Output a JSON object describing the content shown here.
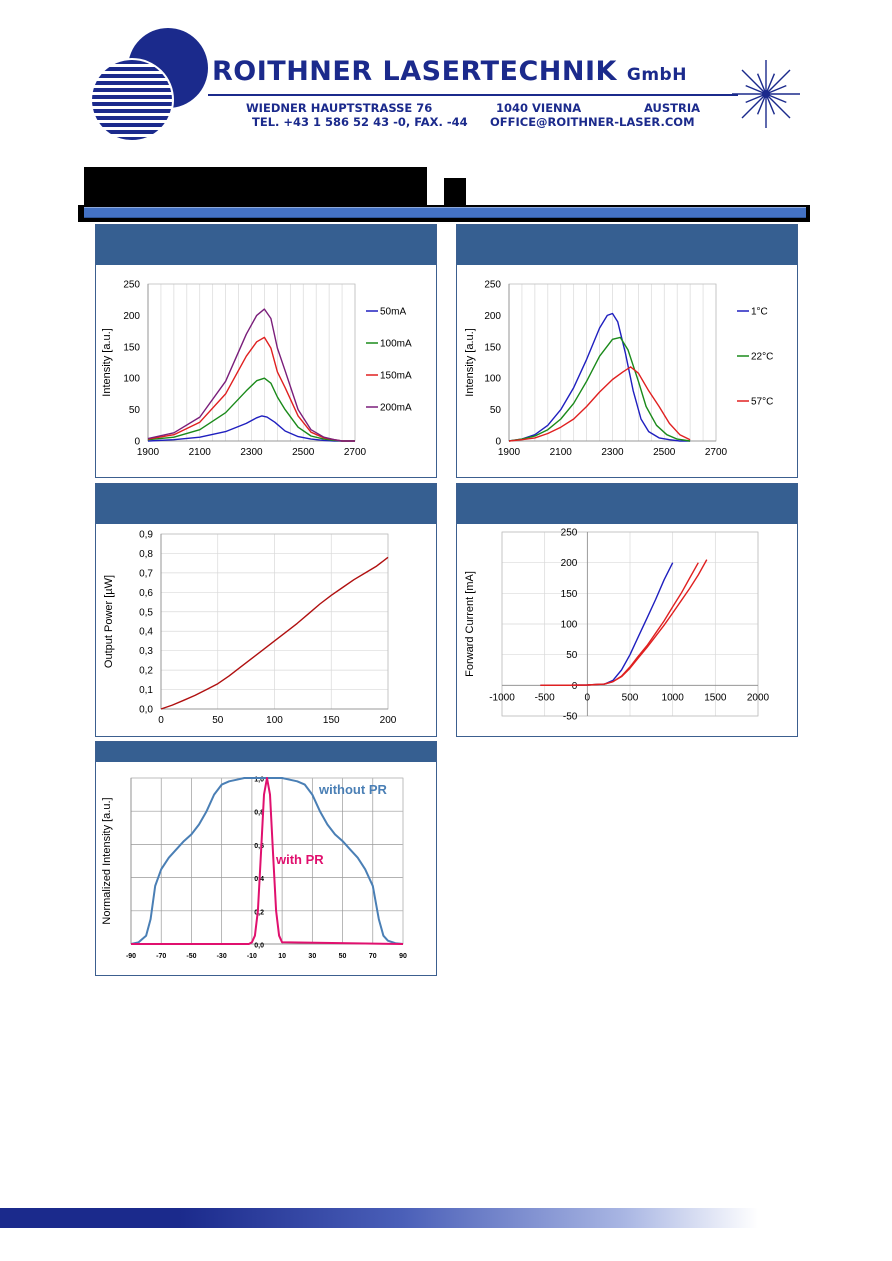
{
  "header": {
    "company_main": "ROITHNER LASERTECHNIK",
    "company_suffix": "GmbH",
    "street": "WIEDNER HAUPTSTRASSE 76",
    "city": "1040 VIENNA",
    "country": "AUSTRIA",
    "phone": "TEL. +43 1 586 52 43 -0, FAX. -44",
    "email": "OFFICE@ROITHNER-LASER.COM",
    "brand_color": "#1b2a8c",
    "accent_color": "#4472c4"
  },
  "charts": [
    {
      "id": "spectrum-current",
      "type": "line",
      "title": "",
      "xlabel": "",
      "ylabel": "Intensity [a.u.]",
      "xlim": [
        1900,
        2700
      ],
      "ylim": [
        0,
        250
      ],
      "xticks": [
        "1900",
        "2100",
        "2300",
        "2500",
        "2700"
      ],
      "yticks": [
        "0",
        "50",
        "100",
        "150",
        "200",
        "250"
      ],
      "legend_position": "right",
      "series": [
        {
          "name": "50mA",
          "color": "#1f1fbf",
          "x": [
            1900,
            2000,
            2100,
            2200,
            2280,
            2320,
            2340,
            2360,
            2390,
            2430,
            2480,
            2530,
            2580,
            2620,
            2650,
            2700
          ],
          "y": [
            0,
            2,
            6,
            15,
            28,
            37,
            40,
            38,
            30,
            16,
            7,
            3,
            1,
            0,
            0,
            0
          ]
        },
        {
          "name": "100mA",
          "color": "#1a8a1a",
          "x": [
            1900,
            2000,
            2100,
            2200,
            2280,
            2320,
            2350,
            2375,
            2400,
            2430,
            2480,
            2530,
            2580,
            2620,
            2650,
            2700
          ],
          "y": [
            2,
            6,
            18,
            45,
            80,
            96,
            100,
            92,
            70,
            50,
            22,
            8,
            3,
            1,
            0,
            0
          ]
        },
        {
          "name": "150mA",
          "color": "#e02020",
          "x": [
            1900,
            2000,
            2100,
            2200,
            2280,
            2320,
            2350,
            2375,
            2400,
            2430,
            2480,
            2530,
            2580,
            2620,
            2650,
            2700
          ],
          "y": [
            3,
            10,
            30,
            75,
            135,
            158,
            165,
            148,
            110,
            85,
            40,
            14,
            5,
            2,
            0,
            0
          ]
        },
        {
          "name": "200mA",
          "color": "#7a1e7a",
          "x": [
            1900,
            2000,
            2100,
            2200,
            2280,
            2320,
            2350,
            2375,
            2400,
            2430,
            2480,
            2530,
            2580,
            2620,
            2650,
            2700
          ],
          "y": [
            4,
            13,
            38,
            95,
            170,
            200,
            210,
            195,
            148,
            112,
            50,
            18,
            6,
            2,
            0,
            0
          ]
        }
      ]
    },
    {
      "id": "spectrum-temperature",
      "type": "line",
      "title": "",
      "xlabel": "",
      "ylabel": "Intensity [a.u.]",
      "xlim": [
        1900,
        2700
      ],
      "ylim": [
        0,
        250
      ],
      "xticks": [
        "1900",
        "2100",
        "2300",
        "2500",
        "2700"
      ],
      "yticks": [
        "0",
        "50",
        "100",
        "150",
        "200",
        "250"
      ],
      "legend_position": "right",
      "series": [
        {
          "name": "1°C",
          "color": "#1f1fbf",
          "x": [
            1900,
            1950,
            2000,
            2050,
            2100,
            2150,
            2200,
            2250,
            2280,
            2300,
            2320,
            2350,
            2380,
            2410,
            2440,
            2480,
            2520,
            2560,
            2600
          ],
          "y": [
            0,
            3,
            10,
            25,
            50,
            85,
            130,
            180,
            200,
            203,
            190,
            140,
            80,
            35,
            15,
            5,
            2,
            0,
            0
          ]
        },
        {
          "name": "22°C",
          "color": "#1a8a1a",
          "x": [
            1900,
            1950,
            2000,
            2050,
            2100,
            2150,
            2200,
            2250,
            2300,
            2330,
            2360,
            2400,
            2430,
            2470,
            2510,
            2550,
            2600
          ],
          "y": [
            0,
            3,
            8,
            18,
            35,
            60,
            95,
            135,
            162,
            165,
            145,
            95,
            55,
            25,
            10,
            3,
            0
          ]
        },
        {
          "name": "57°C",
          "color": "#e02020",
          "x": [
            1900,
            1950,
            2000,
            2050,
            2100,
            2150,
            2200,
            2250,
            2300,
            2340,
            2370,
            2400,
            2440,
            2480,
            2520,
            2560,
            2600
          ],
          "y": [
            0,
            2,
            5,
            12,
            22,
            35,
            55,
            78,
            98,
            110,
            118,
            108,
            80,
            55,
            28,
            10,
            2
          ]
        }
      ]
    },
    {
      "id": "li-curve",
      "type": "line",
      "title": "",
      "xlabel": "",
      "ylabel": "Output Power [µW]",
      "xlim": [
        0,
        200
      ],
      "ylim": [
        0,
        0.9
      ],
      "xticks": [
        "0",
        "50",
        "100",
        "150",
        "200"
      ],
      "yticks": [
        "0,0",
        "0,1",
        "0,2",
        "0,3",
        "0,4",
        "0,5",
        "0,6",
        "0,7",
        "0,8",
        "0,9"
      ],
      "series": [
        {
          "name": "",
          "color": "#b01010",
          "x": [
            0,
            10,
            20,
            30,
            40,
            50,
            60,
            70,
            80,
            90,
            100,
            110,
            120,
            130,
            140,
            150,
            160,
            170,
            180,
            190,
            200
          ],
          "y": [
            0,
            0.02,
            0.045,
            0.07,
            0.1,
            0.13,
            0.17,
            0.215,
            0.26,
            0.305,
            0.35,
            0.395,
            0.44,
            0.49,
            0.54,
            0.585,
            0.625,
            0.665,
            0.7,
            0.735,
            0.78
          ]
        }
      ]
    },
    {
      "id": "iv-curve",
      "type": "line",
      "title": "",
      "xlabel": "",
      "ylabel": "Forward Current [mA]",
      "xlim": [
        -1000,
        2000
      ],
      "ylim": [
        -50,
        250
      ],
      "xticks": [
        "-1000",
        "-500",
        "0",
        "500",
        "1000",
        "1500",
        "2000"
      ],
      "yticks": [
        "-50",
        "0",
        "50",
        "100",
        "150",
        "200",
        "250"
      ],
      "series": [
        {
          "name": "",
          "color": "#1f1fbf",
          "x": [
            -550,
            -300,
            0,
            200,
            300,
            400,
            500,
            600,
            700,
            800,
            900,
            1000
          ],
          "y": [
            0,
            0,
            0.5,
            2,
            8,
            25,
            50,
            80,
            110,
            140,
            172,
            200
          ]
        },
        {
          "name": "",
          "color": "#e02020",
          "x": [
            -550,
            -300,
            0,
            200,
            300,
            400,
            500,
            600,
            700,
            800,
            900,
            1000,
            1100,
            1200,
            1300
          ],
          "y": [
            0,
            0,
            0.5,
            2,
            6,
            15,
            30,
            48,
            65,
            85,
            105,
            128,
            150,
            175,
            200
          ]
        },
        {
          "name": "",
          "color": "#e02020",
          "x": [
            -550,
            -300,
            0,
            200,
            300,
            400,
            500,
            600,
            700,
            800,
            900,
            1000,
            1100,
            1200,
            1300,
            1400
          ],
          "y": [
            0,
            0,
            0.5,
            2,
            6,
            14,
            28,
            45,
            62,
            80,
            98,
            118,
            138,
            158,
            180,
            205
          ]
        }
      ]
    },
    {
      "id": "far-field",
      "type": "line",
      "title": "",
      "xlabel": "",
      "ylabel": "Normalized Intensity [a.u.]",
      "xlim": [
        -90,
        90
      ],
      "ylim": [
        0,
        1.0
      ],
      "xticks": [
        "-90",
        "-70",
        "-50",
        "-30",
        "-10",
        "10",
        "30",
        "50",
        "70",
        "90"
      ],
      "yticks": [
        "0,0",
        "0,2",
        "0,4",
        "0,6",
        "0,8",
        "1,0"
      ],
      "annotations": [
        "without PR",
        "with PR"
      ],
      "series": [
        {
          "name": "without PR",
          "color": "#4a7fb5",
          "x": [
            -90,
            -85,
            -80,
            -77,
            -74,
            -70,
            -65,
            -60,
            -55,
            -50,
            -45,
            -40,
            -35,
            -30,
            -25,
            -20,
            -15,
            -10,
            -5,
            0,
            5,
            10,
            15,
            20,
            25,
            30,
            35,
            40,
            45,
            50,
            55,
            60,
            65,
            70,
            74,
            77,
            80,
            85,
            90
          ],
          "y": [
            0,
            0.01,
            0.05,
            0.15,
            0.35,
            0.45,
            0.52,
            0.57,
            0.62,
            0.66,
            0.72,
            0.8,
            0.9,
            0.96,
            0.98,
            0.99,
            1.0,
            1.0,
            1.0,
            1.0,
            1.0,
            1.0,
            0.99,
            0.98,
            0.96,
            0.9,
            0.8,
            0.72,
            0.66,
            0.62,
            0.57,
            0.52,
            0.45,
            0.35,
            0.15,
            0.05,
            0.02,
            0.005,
            0
          ]
        },
        {
          "name": "with PR",
          "color": "#e0106e",
          "x": [
            -90,
            -12,
            -10,
            -8,
            -6,
            -4,
            -2,
            0,
            2,
            4,
            6,
            8,
            10,
            90
          ],
          "y": [
            0,
            0,
            0.01,
            0.05,
            0.2,
            0.55,
            0.9,
            1.0,
            0.9,
            0.55,
            0.2,
            0.05,
            0.01,
            0
          ]
        }
      ]
    }
  ]
}
